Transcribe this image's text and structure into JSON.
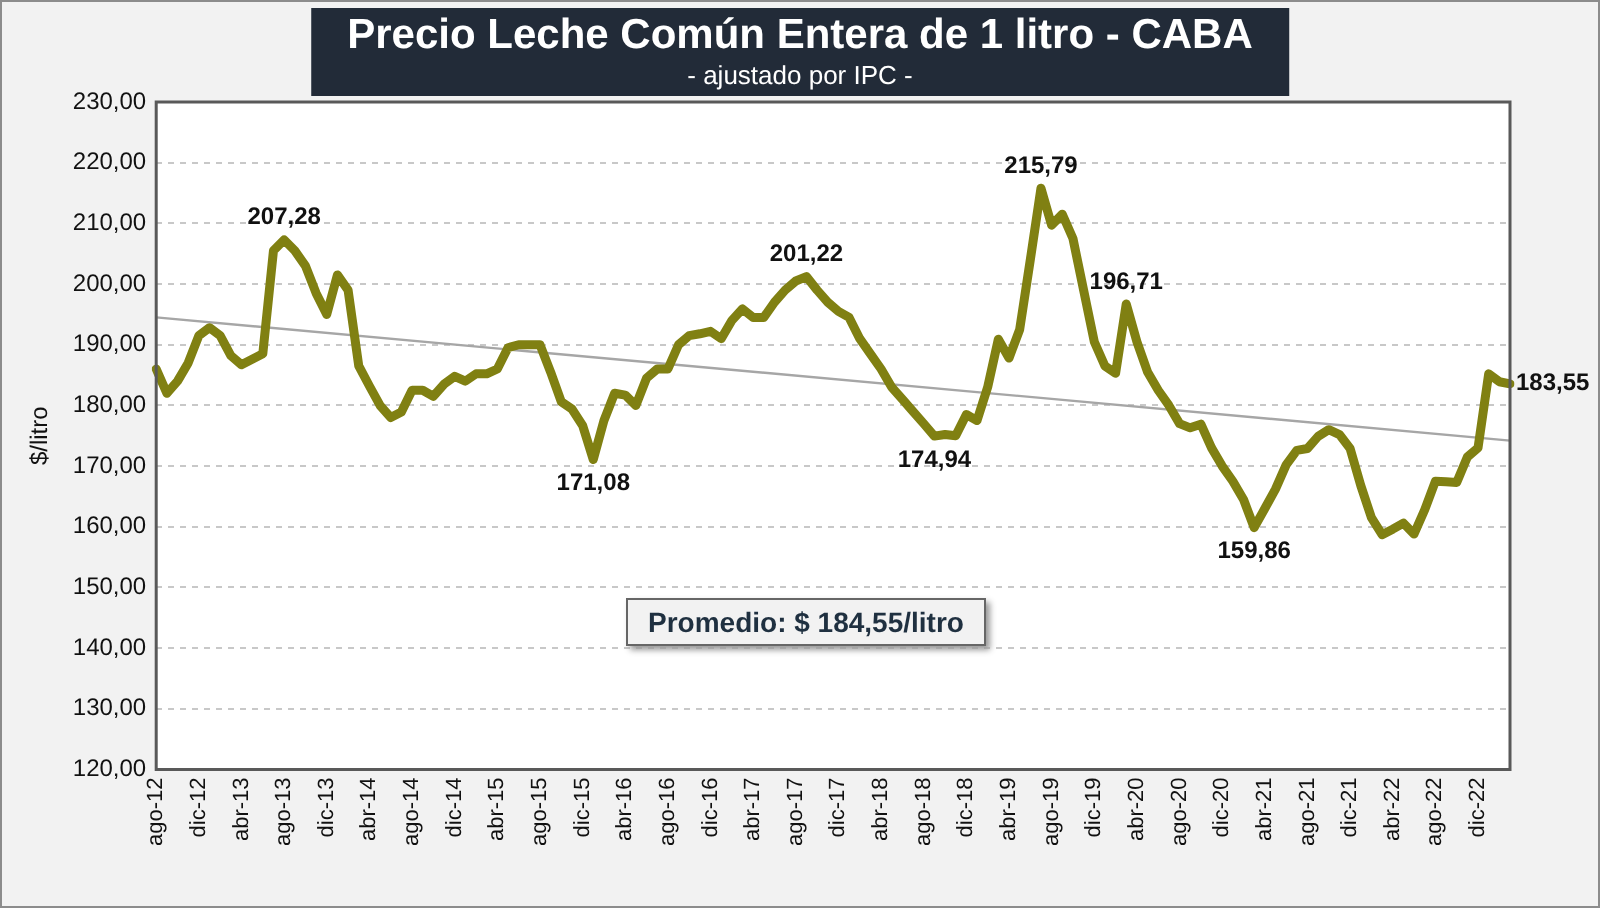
{
  "chart_data": {
    "type": "line",
    "title": "Precio Leche Común Entera de 1 litro - CABA",
    "subtitle": "- ajustado por IPC -",
    "ylabel": "$/litro",
    "categories": [
      "ago-12",
      null,
      null,
      null,
      "dic-12",
      null,
      null,
      null,
      "abr-13",
      null,
      null,
      null,
      "ago-13",
      null,
      null,
      null,
      "dic-13",
      null,
      null,
      null,
      "abr-14",
      null,
      null,
      null,
      "ago-14",
      null,
      null,
      null,
      "dic-14",
      null,
      null,
      null,
      "abr-15",
      null,
      null,
      null,
      "ago-15",
      null,
      null,
      null,
      "dic-15",
      null,
      null,
      null,
      "abr-16",
      null,
      null,
      null,
      "ago-16",
      null,
      null,
      null,
      "dic-16",
      null,
      null,
      null,
      "abr-17",
      null,
      null,
      null,
      "ago-17",
      null,
      null,
      null,
      "dic-17",
      null,
      null,
      null,
      "abr-18",
      null,
      null,
      null,
      "ago-18",
      null,
      null,
      null,
      "dic-18",
      null,
      null,
      null,
      "abr-19",
      null,
      null,
      null,
      "ago-19",
      null,
      null,
      null,
      "dic-19",
      null,
      null,
      null,
      "abr-20",
      null,
      null,
      null,
      "ago-20",
      null,
      null,
      null,
      "dic-20",
      null,
      null,
      null,
      "abr-21",
      null,
      null,
      null,
      "ago-21",
      null,
      null,
      null,
      "dic-21",
      null,
      null,
      null,
      "abr-22",
      null,
      null,
      null,
      "ago-22",
      null,
      null,
      null,
      "dic-22",
      null,
      null,
      null
    ],
    "series": [
      {
        "color": "#808012",
        "values": [
          186,
          182,
          184,
          187,
          191.5,
          192.8,
          191.5,
          188.2,
          186.7,
          187.6,
          188.5,
          205.5,
          207.28,
          205.5,
          203,
          198.5,
          195,
          201.5,
          199,
          186.5,
          183.2,
          180,
          178,
          178.9,
          182.5,
          182.5,
          181.5,
          183.5,
          184.8,
          184,
          185.2,
          185.2,
          186,
          189.5,
          190,
          190,
          190,
          185.5,
          180.6,
          179.4,
          176.7,
          171.08,
          177.5,
          182,
          181.7,
          180,
          184.5,
          186,
          186,
          190,
          191.5,
          191.8,
          192.2,
          191,
          194,
          195.9,
          194.5,
          194.5,
          197,
          199,
          200.5,
          201.22,
          199,
          197,
          195.5,
          194.5,
          191,
          188.5,
          186,
          183,
          181,
          179,
          177,
          174.94,
          175.2,
          175,
          178.5,
          177.5,
          183,
          190.9,
          187.8,
          192.5,
          204,
          215.79,
          209.7,
          211.5,
          207.5,
          199,
          190.5,
          186.5,
          185.3,
          196.71,
          190.5,
          185.5,
          182.5,
          180,
          177,
          176.3,
          176.9,
          173,
          170,
          167.5,
          164.5,
          159.86,
          163,
          166.2,
          170.2,
          172.6,
          172.9,
          174.9,
          176,
          175.2,
          172.9,
          166.8,
          161.5,
          158.7,
          159.6,
          160.6,
          158.8,
          162.8,
          167.5,
          167.4,
          167.3,
          171.5,
          173,
          185.2,
          183.9,
          183.55
        ],
        "value_labels": [
          null,
          null,
          null,
          null,
          null,
          null,
          null,
          null,
          null,
          null,
          null,
          null,
          "207,28",
          null,
          null,
          null,
          null,
          null,
          null,
          null,
          null,
          null,
          null,
          null,
          null,
          null,
          null,
          null,
          null,
          null,
          null,
          null,
          null,
          null,
          null,
          null,
          null,
          null,
          null,
          null,
          null,
          "171,08",
          null,
          null,
          null,
          null,
          null,
          null,
          null,
          null,
          null,
          null,
          null,
          null,
          null,
          null,
          null,
          null,
          null,
          null,
          null,
          "201,22",
          null,
          null,
          null,
          null,
          null,
          null,
          null,
          null,
          null,
          null,
          null,
          "174,94",
          null,
          null,
          null,
          null,
          null,
          null,
          null,
          null,
          null,
          "215,79",
          null,
          null,
          null,
          null,
          null,
          null,
          null,
          "196,71",
          null,
          null,
          null,
          null,
          null,
          null,
          null,
          null,
          null,
          null,
          null,
          "159,86",
          null,
          null,
          null,
          null,
          null,
          null,
          null,
          null,
          null,
          null,
          null,
          null,
          null,
          null,
          null,
          null,
          null,
          null,
          null,
          null,
          null,
          null,
          null,
          "183,55"
        ]
      },
      {
        "type": "line",
        "color": "#a6a6a6",
        "values": [
          194.5,
          null,
          null,
          null,
          null,
          null,
          null,
          null,
          null,
          null,
          null,
          null,
          null,
          null,
          null,
          null,
          null,
          null,
          null,
          null,
          null,
          null,
          null,
          null,
          null,
          null,
          null,
          null,
          null,
          null,
          null,
          null,
          null,
          null,
          null,
          null,
          null,
          null,
          null,
          null,
          null,
          null,
          null,
          null,
          null,
          null,
          null,
          null,
          null,
          null,
          null,
          null,
          null,
          null,
          null,
          null,
          null,
          null,
          null,
          null,
          null,
          null,
          null,
          null,
          null,
          null,
          null,
          null,
          null,
          null,
          null,
          null,
          null,
          null,
          null,
          null,
          null,
          null,
          null,
          null,
          null,
          null,
          null,
          null,
          null,
          null,
          null,
          null,
          null,
          null,
          null,
          null,
          null,
          null,
          null,
          null,
          null,
          null,
          null,
          null,
          null,
          null,
          null,
          null,
          null,
          null,
          null,
          null,
          null,
          null,
          null,
          null,
          null,
          null,
          null,
          null,
          null,
          null,
          null,
          null,
          null,
          null,
          null,
          null,
          null,
          null,
          null,
          174.2
        ]
      }
    ],
    "ylim": [
      120,
      230
    ],
    "yticks": [
      {
        "value": 120,
        "label": "120,00"
      },
      {
        "value": 130,
        "label": "130,00"
      },
      {
        "value": 140,
        "label": "140,00"
      },
      {
        "value": 150,
        "label": "150,00"
      },
      {
        "value": 160,
        "label": "160,00"
      },
      {
        "value": 170,
        "label": "170,00"
      },
      {
        "value": 180,
        "label": "180,00"
      },
      {
        "value": 190,
        "label": "190,00"
      },
      {
        "value": 200,
        "label": "200,00"
      },
      {
        "value": 210,
        "label": "210,00"
      },
      {
        "value": 220,
        "label": "220,00"
      },
      {
        "value": 230,
        "label": "230,00"
      }
    ],
    "grid": "y",
    "legend": false,
    "marker": "none",
    "annotations": [
      "Promedio: $ 184,55/litro"
    ]
  }
}
